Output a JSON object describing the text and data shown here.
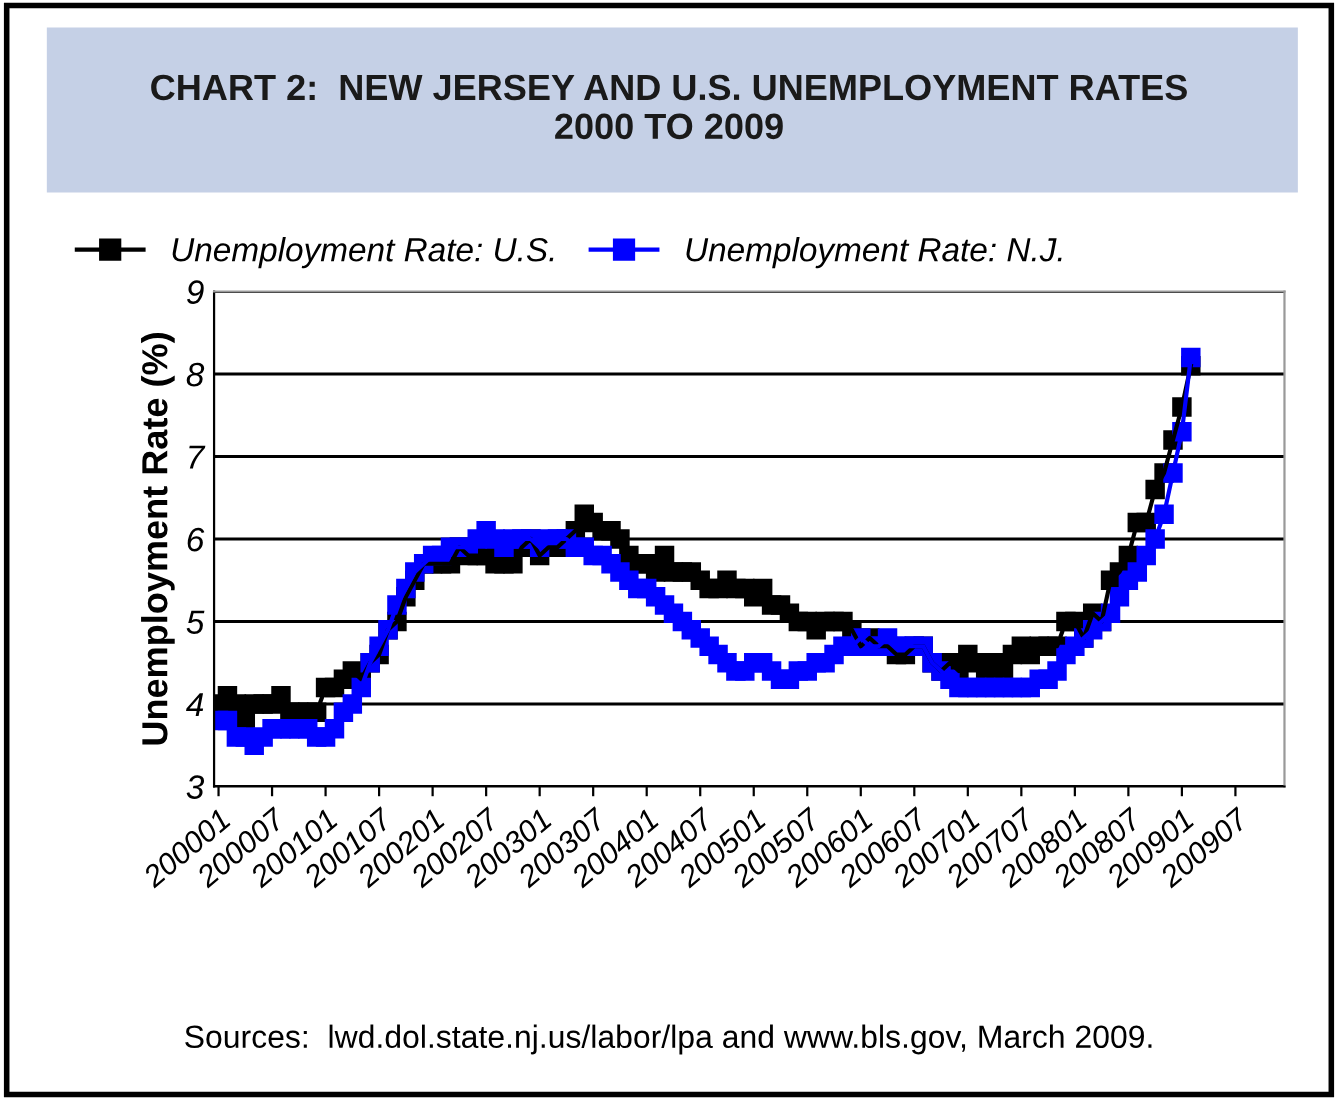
{
  "chart_data": {
    "type": "line",
    "title": "CHART 2:  NEW JERSEY AND U.S. UNEMPLOYMENT RATES\n2000 TO 2009",
    "ylabel": "Unemployment Rate (%)",
    "categories": [
      "200001",
      null,
      null,
      null,
      null,
      null,
      "200007",
      null,
      null,
      null,
      null,
      null,
      "200101",
      null,
      null,
      null,
      null,
      null,
      "200107",
      null,
      null,
      null,
      null,
      null,
      "200201",
      null,
      null,
      null,
      null,
      null,
      "200207",
      null,
      null,
      null,
      null,
      null,
      "200301",
      null,
      null,
      null,
      null,
      null,
      "200307",
      null,
      null,
      null,
      null,
      null,
      "200401",
      null,
      null,
      null,
      null,
      null,
      "200407",
      null,
      null,
      null,
      null,
      null,
      "200501",
      null,
      null,
      null,
      null,
      null,
      "200507",
      null,
      null,
      null,
      null,
      null,
      "200601",
      null,
      null,
      null,
      null,
      null,
      "200607",
      null,
      null,
      null,
      null,
      null,
      "200701",
      null,
      null,
      null,
      null,
      null,
      "200707",
      null,
      null,
      null,
      null,
      null,
      "200801",
      null,
      null,
      null,
      null,
      null,
      "200807",
      null,
      null,
      null,
      null,
      null,
      "200901",
      null,
      null,
      null,
      null,
      null,
      "200907",
      null,
      null,
      null,
      null,
      null
    ],
    "series": [
      {
        "name": "Unemployment Rate: U.S.",
        "color": "#000000",
        "values": [
          4.0,
          4.1,
          4.0,
          3.8,
          4.0,
          4.0,
          4.0,
          4.1,
          3.9,
          3.9,
          3.9,
          3.9,
          4.2,
          4.2,
          4.3,
          4.4,
          4.3,
          4.5,
          4.6,
          4.9,
          5.0,
          5.3,
          5.5,
          5.7,
          5.7,
          5.7,
          5.7,
          5.9,
          5.8,
          5.8,
          5.8,
          5.7,
          5.7,
          5.7,
          5.9,
          6.0,
          5.8,
          5.9,
          5.9,
          6.0,
          6.1,
          6.3,
          6.2,
          6.1,
          6.1,
          6.0,
          5.8,
          5.7,
          5.7,
          5.6,
          5.8,
          5.6,
          5.6,
          5.6,
          5.5,
          5.4,
          5.4,
          5.5,
          5.4,
          5.4,
          5.3,
          5.4,
          5.2,
          5.2,
          5.1,
          5.0,
          5.0,
          4.9,
          5.0,
          5.0,
          5.0,
          4.9,
          4.7,
          4.8,
          4.7,
          4.7,
          4.6,
          4.6,
          4.7,
          4.7,
          4.5,
          4.4,
          4.5,
          4.4,
          4.6,
          4.5,
          4.4,
          4.5,
          4.4,
          4.6,
          4.7,
          4.6,
          4.7,
          4.7,
          4.7,
          5.0,
          5.0,
          4.8,
          5.1,
          5.0,
          5.5,
          5.6,
          5.8,
          6.2,
          6.2,
          6.6,
          6.8,
          7.2,
          7.6,
          8.1,
          null,
          null,
          null,
          null,
          null,
          null,
          null,
          null,
          null,
          null
        ]
      },
      {
        "name": "Unemployment Rate: N.J.",
        "color": "#0000ff",
        "values": [
          3.8,
          3.8,
          3.6,
          3.6,
          3.5,
          3.6,
          3.7,
          3.7,
          3.7,
          3.7,
          3.7,
          3.6,
          3.6,
          3.7,
          3.9,
          4.0,
          4.2,
          4.5,
          4.7,
          4.9,
          5.2,
          5.4,
          5.6,
          5.7,
          5.8,
          5.8,
          5.9,
          5.9,
          5.9,
          6.0,
          6.1,
          6.0,
          5.9,
          6.0,
          6.0,
          6.0,
          5.9,
          6.0,
          6.0,
          6.0,
          5.9,
          5.9,
          5.8,
          5.8,
          5.7,
          5.6,
          5.5,
          5.4,
          5.4,
          5.3,
          5.2,
          5.1,
          5.0,
          4.9,
          4.8,
          4.7,
          4.6,
          4.5,
          4.4,
          4.4,
          4.5,
          4.5,
          4.4,
          4.3,
          4.3,
          4.4,
          4.4,
          4.5,
          4.5,
          4.6,
          4.7,
          4.7,
          4.8,
          4.7,
          4.7,
          4.8,
          4.7,
          4.7,
          4.7,
          4.7,
          4.5,
          4.4,
          4.3,
          4.2,
          4.2,
          4.2,
          4.2,
          4.2,
          4.2,
          4.2,
          4.2,
          4.2,
          4.3,
          4.3,
          4.4,
          4.6,
          4.7,
          4.8,
          4.9,
          5.0,
          5.1,
          5.3,
          5.5,
          5.6,
          5.8,
          6.0,
          6.3,
          6.8,
          7.3,
          8.2,
          null,
          null,
          null,
          null,
          null,
          null,
          null,
          null,
          null,
          null
        ]
      }
    ],
    "ylim": [
      3,
      9
    ],
    "yticks": [
      3,
      4,
      5,
      6,
      7,
      8,
      9
    ],
    "grid": "y",
    "legend": "top left",
    "marker": "square",
    "line_style": "solid",
    "annotations": [
      "Sources:  lwd.dol.state.nj.us/labor/lpa and www.bls.gov, March 2009."
    ]
  }
}
